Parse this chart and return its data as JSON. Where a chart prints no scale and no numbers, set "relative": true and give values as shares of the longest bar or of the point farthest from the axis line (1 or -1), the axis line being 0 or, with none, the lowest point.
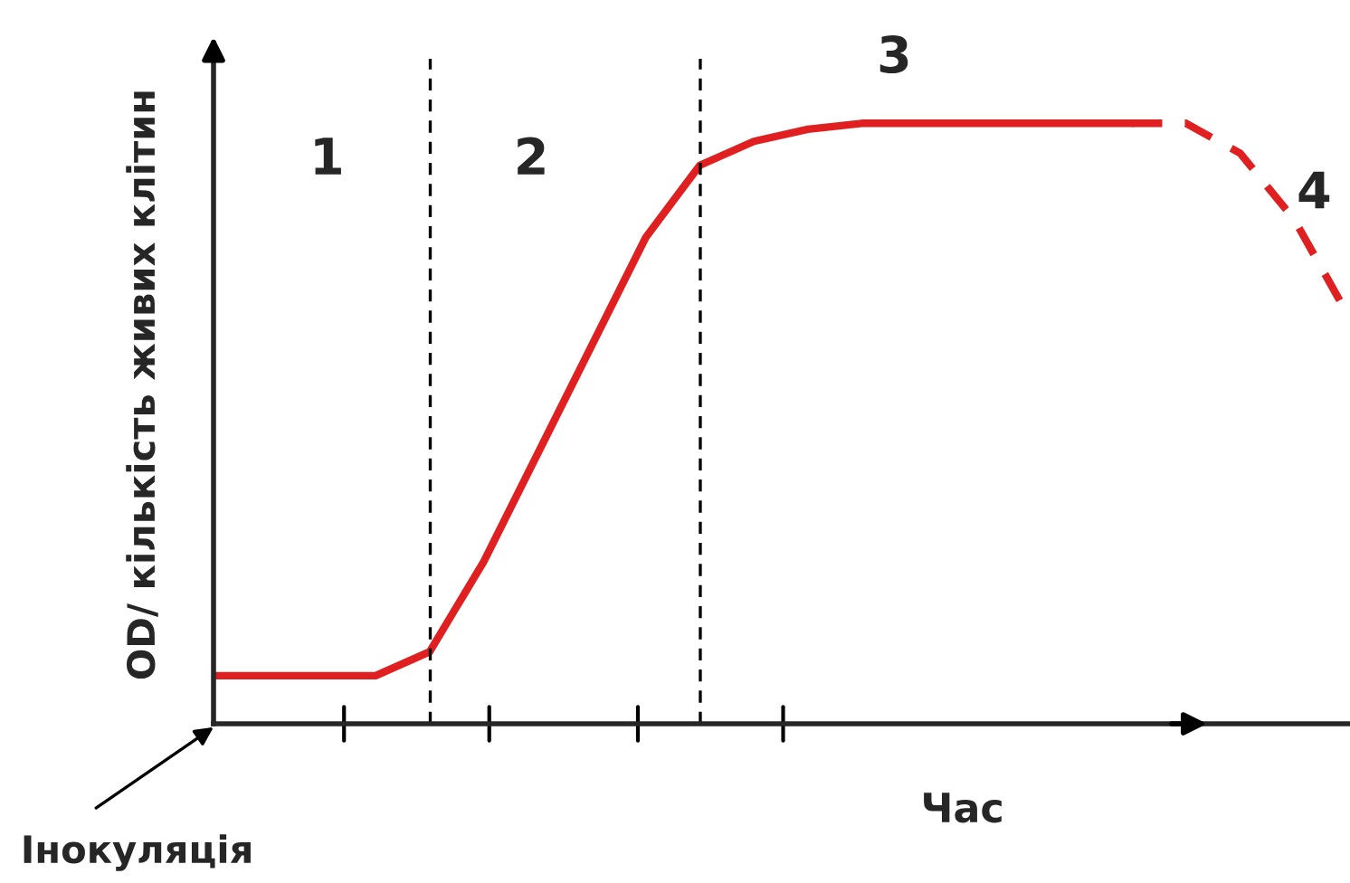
{
  "chart_data": {
    "type": "line",
    "relative": true,
    "xlabel": "Час",
    "ylabel": "OD/ кількість живих клітин",
    "categories": [
      null,
      null,
      null,
      null,
      null,
      null,
      null,
      null,
      null,
      null,
      null,
      null,
      null,
      null,
      null,
      null,
      null,
      null,
      null,
      null,
      null,
      null
    ],
    "series": [
      {
        "color": "#e02020",
        "line_style": "solid",
        "values": [
          0.08,
          0.08,
          0.08,
          0.08,
          0.12,
          0.27,
          0.45,
          0.63,
          0.81,
          0.93,
          0.97,
          0.99,
          1,
          1,
          1,
          1,
          1,
          1,
          null,
          null,
          null,
          null
        ]
      },
      {
        "color": "#e02020",
        "line_style": "dashed",
        "values": [
          null,
          null,
          null,
          null,
          null,
          null,
          null,
          null,
          null,
          null,
          null,
          null,
          null,
          null,
          null,
          null,
          null,
          1,
          1,
          0.95,
          0.84,
          0.68
        ]
      }
    ],
    "annotations": [
      "1",
      "2",
      "3",
      "4",
      "Інокуляція"
    ],
    "grid": false,
    "marker": "none"
  }
}
